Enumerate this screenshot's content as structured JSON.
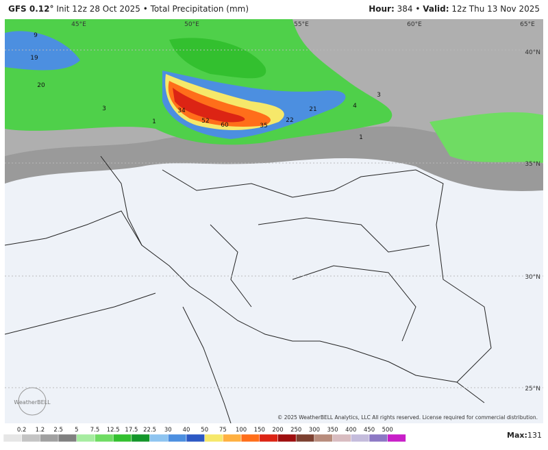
{
  "header": {
    "model": "GFS 0.12°",
    "init": "Init 12z 28 Oct 2025",
    "separator": "•",
    "product": "Total Precipitation (mm)",
    "hour_label": "Hour:",
    "hour": "384",
    "valid_label": "Valid:",
    "valid": "12z Thu 13 Nov 2025"
  },
  "map": {
    "grid_labels": [
      "45°E",
      "50°E",
      "55°E",
      "60°E",
      "65°E",
      "40°N",
      "35°N",
      "30°N",
      "25°N"
    ],
    "value_labels": [
      "9",
      "19",
      "20",
      "3",
      "1",
      "34",
      "52",
      "60",
      "35",
      "22",
      "21",
      "4",
      "3",
      "1"
    ],
    "logo": "WeatherBELL",
    "copyright": "© 2025 WeatherBELL Analytics, LLC All rights reserved. License required for commercial distribution."
  },
  "colorbar": {
    "labels": [
      "0.2",
      "1.2",
      "2.5",
      "5",
      "7.5",
      "12.5",
      "17.5",
      "22.5",
      "30",
      "40",
      "50",
      "75",
      "100",
      "150",
      "200",
      "250",
      "300",
      "350",
      "400",
      "450",
      "500"
    ],
    "colors": [
      "#e6e6e6",
      "#c4c4c4",
      "#a0a0a0",
      "#808080",
      "#a6eca0",
      "#6fdc63",
      "#33c02f",
      "#14962a",
      "#8ec4f0",
      "#4c8fe0",
      "#2c58c4",
      "#f6e86a",
      "#ffb040",
      "#ff6e1a",
      "#dc2414",
      "#9e0e0e",
      "#7c4030",
      "#b88c7c",
      "#d8bcc0",
      "#c4bcdc",
      "#8c78c4",
      "#c81ec8"
    ],
    "max_label": "Max:",
    "max": 131
  }
}
